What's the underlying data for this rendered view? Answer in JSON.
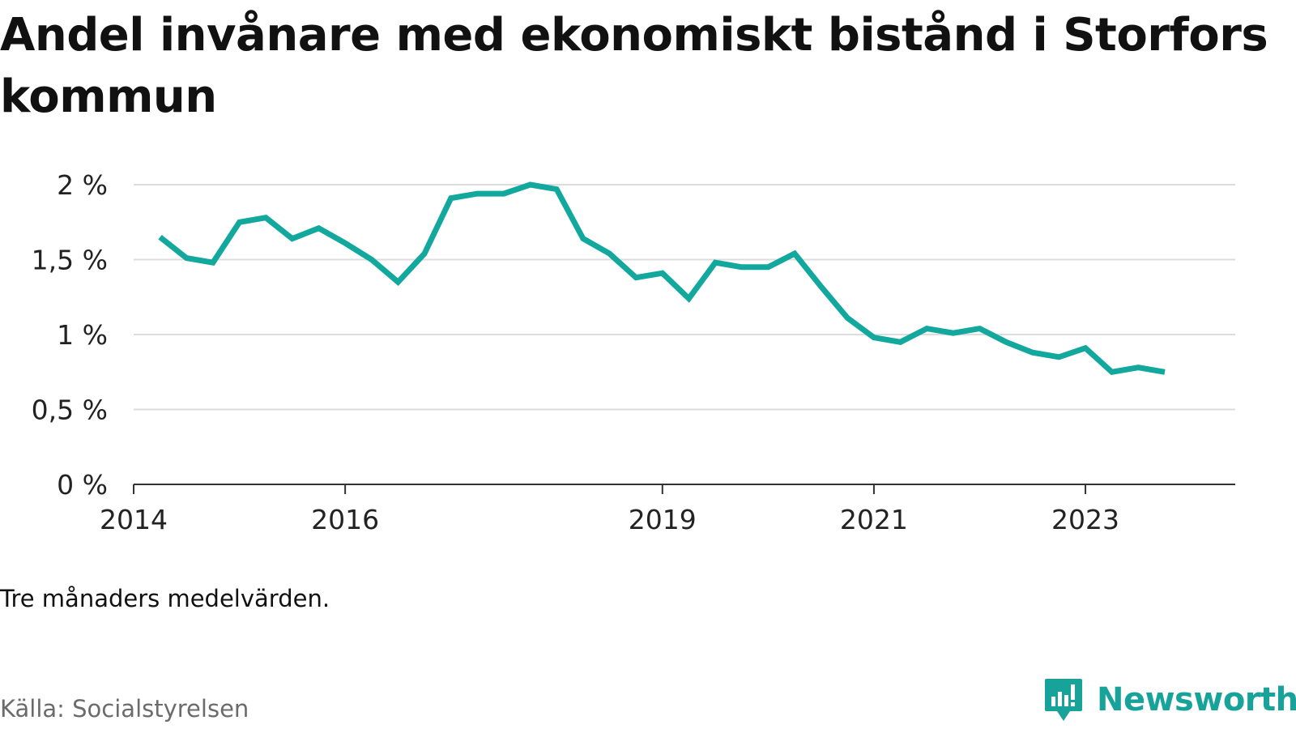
{
  "title": "Andel invånare med ekonomiskt bistånd i Storfors kommun",
  "note": "Tre månaders medelvärden.",
  "source": "Källa: Socialstyrelsen",
  "brand": {
    "name": "Newsworthy",
    "icon": "newsworthy-logo-icon",
    "color": "#18a39a"
  },
  "chart_data": {
    "type": "line",
    "title": "Andel invånare med ekonomiskt bistånd i Storfors kommun",
    "xlabel": "",
    "ylabel": "",
    "ylim": [
      0,
      2
    ],
    "xlim": [
      "2014-01",
      "2024-06"
    ],
    "grid": true,
    "line_color": "#13a89e",
    "y_ticks": [
      {
        "value": 0,
        "label": "0 %"
      },
      {
        "value": 0.5,
        "label": "0,5 %"
      },
      {
        "value": 1,
        "label": "1 %"
      },
      {
        "value": 1.5,
        "label": "1,5 %"
      },
      {
        "value": 2,
        "label": "2 %"
      }
    ],
    "x_ticks": [
      {
        "value": "2014-01",
        "label": "2014"
      },
      {
        "value": "2016-01",
        "label": "2016"
      },
      {
        "value": "2019-01",
        "label": "2019"
      },
      {
        "value": "2021-01",
        "label": "2021"
      },
      {
        "value": "2023-01",
        "label": "2023"
      }
    ],
    "x": [
      "2014-04",
      "2014-07",
      "2014-10",
      "2015-01",
      "2015-04",
      "2015-07",
      "2015-10",
      "2016-01",
      "2016-04",
      "2016-07",
      "2016-10",
      "2017-01",
      "2017-04",
      "2017-07",
      "2017-10",
      "2018-01",
      "2018-04",
      "2018-07",
      "2018-10",
      "2019-01",
      "2019-04",
      "2019-07",
      "2019-10",
      "2020-01",
      "2020-04",
      "2020-07",
      "2020-10",
      "2021-01",
      "2021-04",
      "2021-07",
      "2021-10",
      "2022-01",
      "2022-04",
      "2022-07",
      "2022-10",
      "2023-01",
      "2023-04",
      "2023-07",
      "2023-10"
    ],
    "values": [
      1.65,
      1.51,
      1.48,
      1.75,
      1.78,
      1.64,
      1.71,
      1.61,
      1.5,
      1.35,
      1.54,
      1.91,
      1.94,
      1.94,
      2.0,
      1.97,
      1.64,
      1.54,
      1.38,
      1.41,
      1.24,
      1.48,
      1.45,
      1.45,
      1.54,
      1.32,
      1.11,
      0.98,
      0.95,
      1.04,
      1.01,
      1.04,
      0.95,
      0.88,
      0.85,
      0.91,
      0.75,
      0.78,
      0.75
    ]
  }
}
